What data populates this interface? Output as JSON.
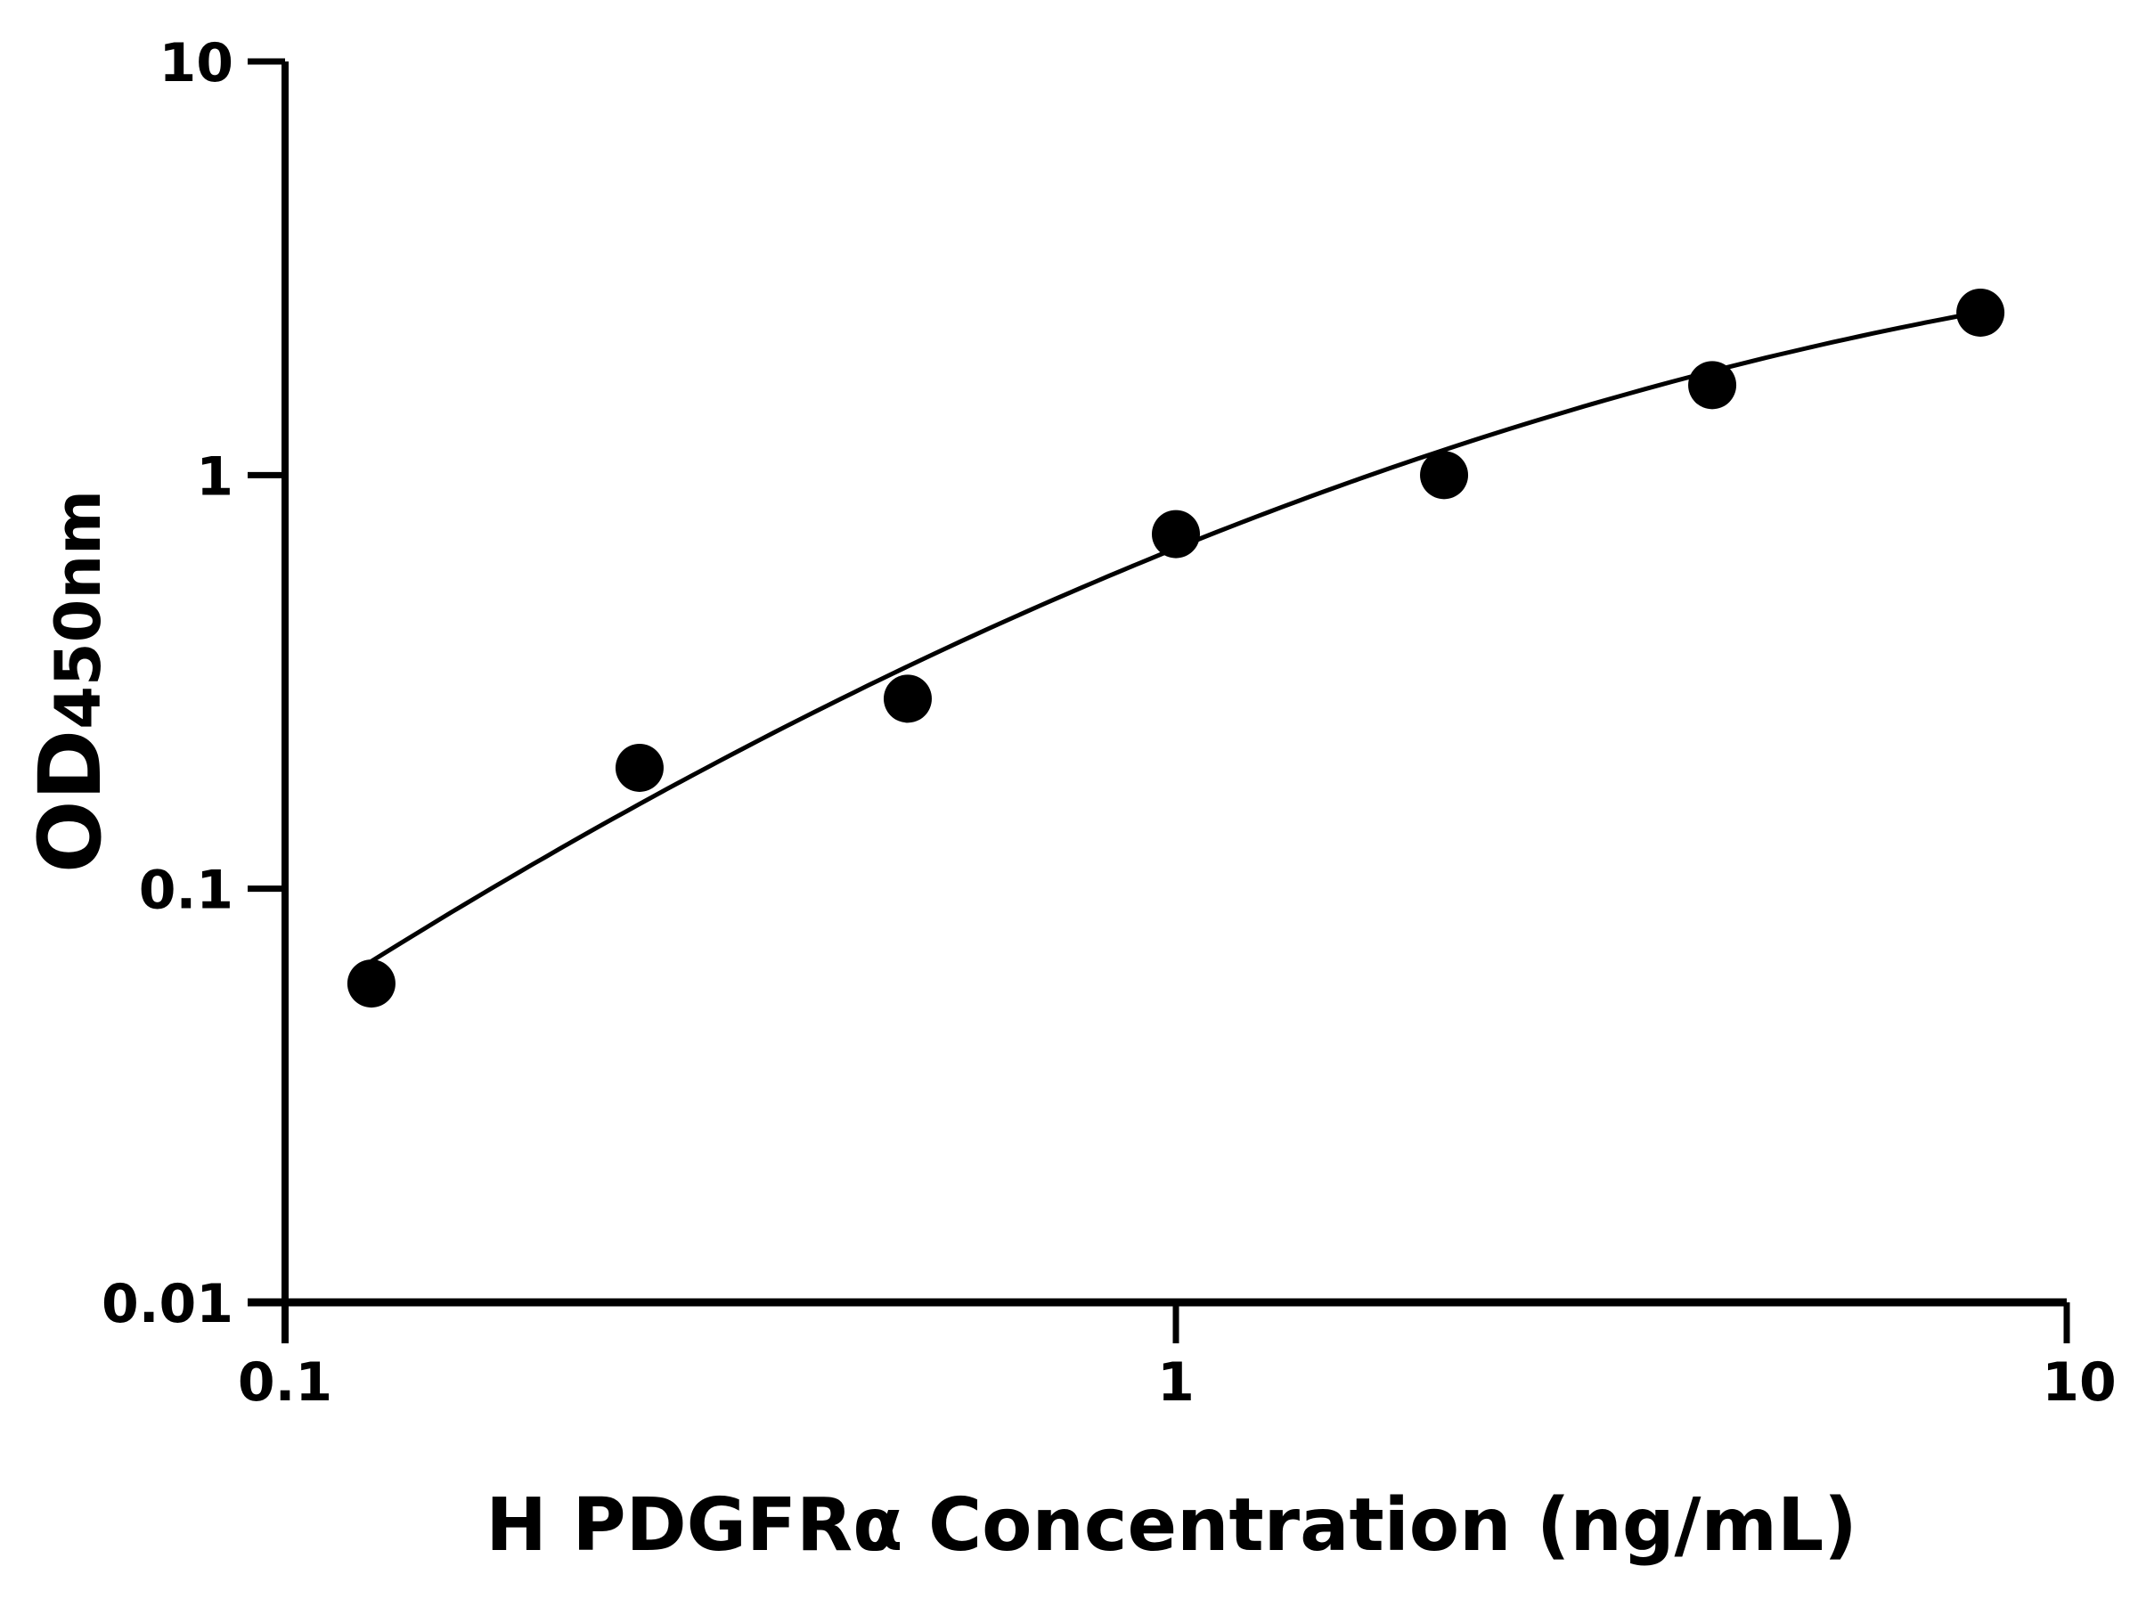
{
  "chart_data": {
    "type": "scatter",
    "title": "",
    "xlabel": "H PDGFRα Concentration (ng/mL)",
    "ylabel": {
      "main": "OD",
      "subscript": "450nm"
    },
    "xscale": "log",
    "yscale": "log",
    "xlim": [
      0.1,
      10
    ],
    "ylim": [
      0.01,
      10
    ],
    "xticks": [
      "0.1",
      "1",
      "10"
    ],
    "yticks": [
      "0.01",
      "0.1",
      "1",
      "10"
    ],
    "grid": false,
    "legend": "none",
    "series": [
      {
        "x": [
          0.125,
          0.25,
          0.5,
          1,
          2,
          4,
          8
        ],
        "y": [
          0.059,
          0.196,
          0.288,
          0.72,
          1.0,
          1.65,
          2.47
        ],
        "marker": "filled-circle",
        "color": "#000000",
        "fit_line": true
      }
    ]
  }
}
